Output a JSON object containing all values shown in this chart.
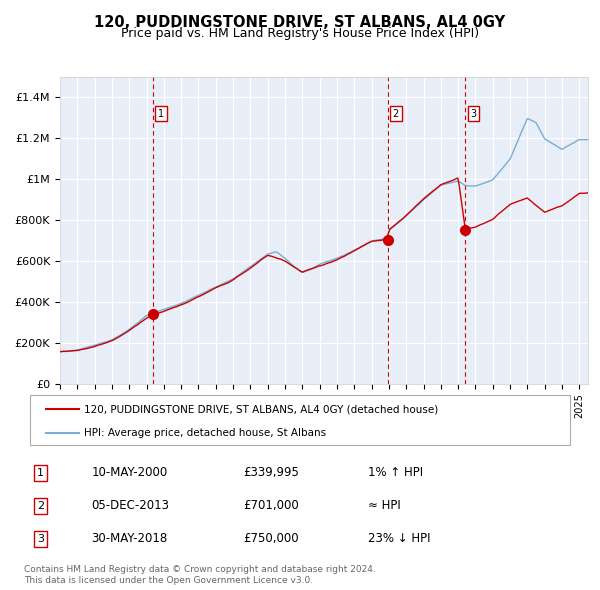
{
  "title": "120, PUDDINGSTONE DRIVE, ST ALBANS, AL4 0GY",
  "subtitle": "Price paid vs. HM Land Registry's House Price Index (HPI)",
  "title_fontsize": 11,
  "subtitle_fontsize": 9.5,
  "bg_color": "#e8eef8",
  "plot_bg_color": "#e8eef8",
  "hpi_color": "#7aadd4",
  "property_color": "#cc0000",
  "sale_marker_color": "#cc0000",
  "vline_color": "#cc0000",
  "sale_dates": [
    2000.36,
    2013.92,
    2018.41
  ],
  "sale_prices": [
    339995,
    701000,
    750000
  ],
  "sale_labels": [
    "1",
    "2",
    "3"
  ],
  "legend_property": "120, PUDDINGSTONE DRIVE, ST ALBANS, AL4 0GY (detached house)",
  "legend_hpi": "HPI: Average price, detached house, St Albans",
  "table_rows": [
    [
      "1",
      "10-MAY-2000",
      "£339,995",
      "1% ↑ HPI"
    ],
    [
      "2",
      "05-DEC-2013",
      "£701,000",
      "≈ HPI"
    ],
    [
      "3",
      "30-MAY-2018",
      "£750,000",
      "23% ↓ HPI"
    ]
  ],
  "footer": "Contains HM Land Registry data © Crown copyright and database right 2024.\nThis data is licensed under the Open Government Licence v3.0.",
  "ylim": [
    0,
    1500000
  ],
  "yticks": [
    0,
    200000,
    400000,
    600000,
    800000,
    1000000,
    1200000,
    1400000
  ],
  "ytick_labels": [
    "£0",
    "£200K",
    "£400K",
    "£600K",
    "£800K",
    "£1M",
    "£1.2M",
    "£1.4M"
  ],
  "xlim_start": 1995.0,
  "xlim_end": 2025.5
}
